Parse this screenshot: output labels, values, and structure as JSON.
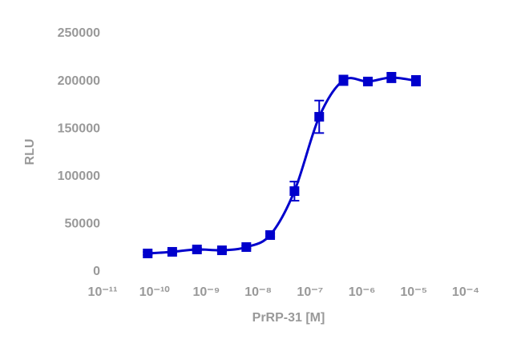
{
  "chart_data": {
    "type": "scatter",
    "x_label": "PrRP-31 [M]",
    "y_label": "RLU",
    "x_scale": "log",
    "x": [
      7.4e-11,
      2.2e-10,
      6.6e-10,
      2e-09,
      5.9e-09,
      1.7e-08,
      5e-08,
      1.5e-07,
      4.4e-07,
      1.3e-06,
      3.7e-06,
      1.1e-05
    ],
    "series": [
      {
        "name": "PrRP-31",
        "color": "#0000cc",
        "values": [
          19300,
          21000,
          23500,
          22600,
          26000,
          38600,
          84700,
          162700,
          201000,
          199700,
          203900,
          200500
        ],
        "errors": [
          1500,
          1500,
          1500,
          1500,
          1500,
          2000,
          10000,
          17000,
          5000,
          2000,
          5000,
          5000
        ]
      }
    ],
    "xlim": [
      1e-11,
      0.0001
    ],
    "xticks": [
      {
        "value": 1e-11,
        "label": "10⁻¹¹"
      },
      {
        "value": 1e-10,
        "label": "10⁻¹⁰"
      },
      {
        "value": 1e-09,
        "label": "10⁻⁹"
      },
      {
        "value": 1e-08,
        "label": "10⁻⁸"
      },
      {
        "value": 1e-07,
        "label": "10⁻⁷"
      },
      {
        "value": 1e-06,
        "label": "10⁻⁶"
      },
      {
        "value": 1e-05,
        "label": "10⁻⁵"
      },
      {
        "value": 0.0001,
        "label": "10⁻⁴"
      }
    ],
    "ylim": [
      0,
      250000
    ],
    "yticks": [
      0,
      50000,
      100000,
      150000,
      200000,
      250000
    ],
    "grid": false
  }
}
